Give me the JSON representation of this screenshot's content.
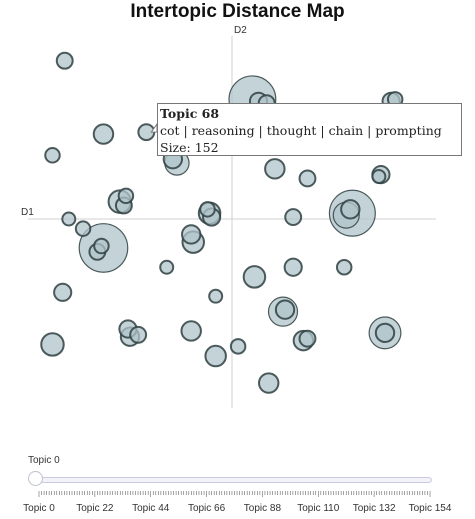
{
  "chart_data": {
    "type": "scatter",
    "title": "Intertopic Distance Map",
    "xlabel": "D1",
    "ylabel": "D2",
    "xlim": [
      -10,
      10
    ],
    "ylim": [
      -10,
      10
    ],
    "grid": false,
    "points": [
      {
        "x": -8.2,
        "y": 8.2,
        "size": 30
      },
      {
        "x": -8.8,
        "y": 3.3,
        "size": 25
      },
      {
        "x": -4.2,
        "y": 4.5,
        "size": 30
      },
      {
        "x": 1.0,
        "y": 6.2,
        "size": 260
      },
      {
        "x": 1.3,
        "y": 6.1,
        "size": 35
      },
      {
        "x": 1.7,
        "y": 6.0,
        "size": 30
      },
      {
        "x": 7.8,
        "y": 6.1,
        "size": 35
      },
      {
        "x": 8.0,
        "y": 6.2,
        "size": 25
      },
      {
        "x": -6.3,
        "y": 4.4,
        "size": 45
      },
      {
        "x": -2.7,
        "y": 2.9,
        "size": 70
      },
      {
        "x": -2.9,
        "y": 3.1,
        "size": 40
      },
      {
        "x": 2.1,
        "y": 2.6,
        "size": 45
      },
      {
        "x": 3.7,
        "y": 2.1,
        "size": 30
      },
      {
        "x": 7.3,
        "y": 2.3,
        "size": 35
      },
      {
        "x": 7.2,
        "y": 2.2,
        "size": 20
      },
      {
        "x": -5.5,
        "y": 0.9,
        "size": 60
      },
      {
        "x": -5.2,
        "y": 1.2,
        "size": 25
      },
      {
        "x": -5.3,
        "y": 0.7,
        "size": 30
      },
      {
        "x": -8.0,
        "y": 0.0,
        "size": 20
      },
      {
        "x": -7.3,
        "y": -0.5,
        "size": 25
      },
      {
        "x": -1.1,
        "y": 0.3,
        "size": 55
      },
      {
        "x": -1.0,
        "y": 0.1,
        "size": 35
      },
      {
        "x": -1.2,
        "y": 0.5,
        "size": 25
      },
      {
        "x": 3.0,
        "y": 0.1,
        "size": 30
      },
      {
        "x": 5.9,
        "y": 0.3,
        "size": 250
      },
      {
        "x": 5.6,
        "y": 0.2,
        "size": 80
      },
      {
        "x": 5.8,
        "y": 0.5,
        "size": 40
      },
      {
        "x": -6.3,
        "y": -1.5,
        "size": 280
      },
      {
        "x": -6.6,
        "y": -1.7,
        "size": 30
      },
      {
        "x": -6.4,
        "y": -1.4,
        "size": 25
      },
      {
        "x": -2.0,
        "y": -0.8,
        "size": 40
      },
      {
        "x": -1.9,
        "y": -1.2,
        "size": 55
      },
      {
        "x": -3.2,
        "y": -2.5,
        "size": 20
      },
      {
        "x": 1.1,
        "y": -3.0,
        "size": 55
      },
      {
        "x": 3.0,
        "y": -2.5,
        "size": 35
      },
      {
        "x": 5.5,
        "y": -2.5,
        "size": 25
      },
      {
        "x": -8.3,
        "y": -3.8,
        "size": 35
      },
      {
        "x": -0.8,
        "y": -4.0,
        "size": 20
      },
      {
        "x": 2.5,
        "y": -4.8,
        "size": 100
      },
      {
        "x": 2.6,
        "y": -4.7,
        "size": 40
      },
      {
        "x": -5.1,
        "y": -5.7,
        "size": 35
      },
      {
        "x": -5.0,
        "y": -6.1,
        "size": 40
      },
      {
        "x": -4.6,
        "y": -6.0,
        "size": 30
      },
      {
        "x": -2.0,
        "y": -5.8,
        "size": 45
      },
      {
        "x": 3.5,
        "y": -6.3,
        "size": 45
      },
      {
        "x": 3.7,
        "y": -6.2,
        "size": 30
      },
      {
        "x": 7.5,
        "y": -5.9,
        "size": 120
      },
      {
        "x": 7.5,
        "y": -5.9,
        "size": 40
      },
      {
        "x": -8.8,
        "y": -6.5,
        "size": 60
      },
      {
        "x": 0.3,
        "y": -6.6,
        "size": 25
      },
      {
        "x": -0.8,
        "y": -7.1,
        "size": 50
      },
      {
        "x": 1.8,
        "y": -8.5,
        "size": 45
      }
    ],
    "tooltip": {
      "title": "Topic 68",
      "words": "cot | reasoning | thought | chain | prompting",
      "size": "Size: 152"
    },
    "highlight_point": {
      "x": -4.2,
      "y": 4.5
    }
  },
  "slider": {
    "current_label": "Topic 0",
    "value": 0,
    "min": 0,
    "max": 154,
    "tick_labels": [
      "Topic 0",
      "Topic 22",
      "Topic 44",
      "Topic 66",
      "Topic 88",
      "Topic 110",
      "Topic 132",
      "Topic 154"
    ]
  },
  "colors": {
    "marker_fill": "#b0c4c9",
    "marker_edge": "#2f3f42",
    "axis_line": "#d0d0d0"
  }
}
